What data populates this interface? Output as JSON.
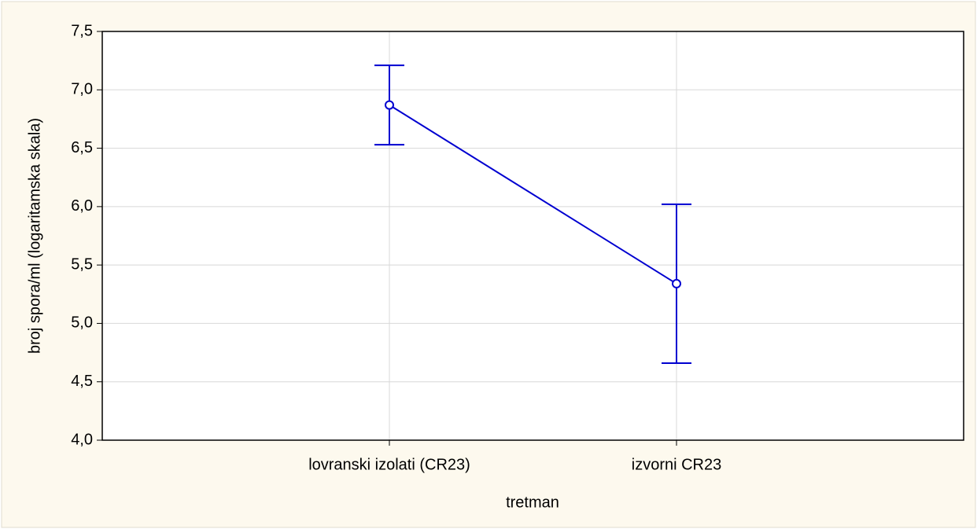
{
  "chart_data": {
    "type": "line",
    "x_label": "tretman",
    "y_label": "broj spora/ml (logaritamska skala)",
    "categories": [
      "lovranski izolati (CR23)",
      "izvorni CR23"
    ],
    "series": [
      {
        "color": "#0000d0",
        "values": [
          6.87,
          5.34
        ],
        "errors": [
          0.34,
          0.68
        ]
      }
    ],
    "ylim": [
      4.0,
      7.5
    ],
    "yticks": [
      {
        "value": 4.0,
        "label": "4,0"
      },
      {
        "value": 4.5,
        "label": "4,5"
      },
      {
        "value": 5.0,
        "label": "5,0"
      },
      {
        "value": 5.5,
        "label": "5,5"
      },
      {
        "value": 6.0,
        "label": "6,0"
      },
      {
        "value": 6.5,
        "label": "6,5"
      },
      {
        "value": 7.0,
        "label": "7,0"
      },
      {
        "value": 7.5,
        "label": "7,5"
      }
    ],
    "grid": true
  }
}
